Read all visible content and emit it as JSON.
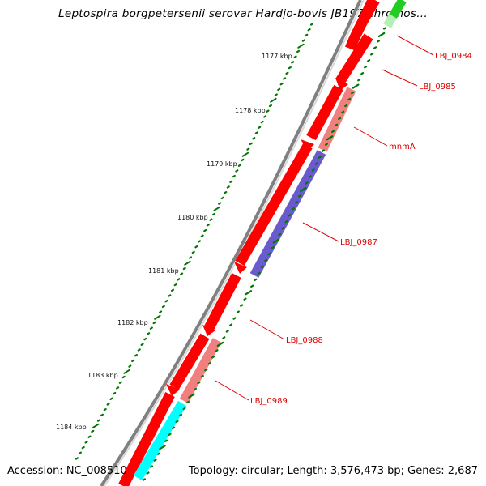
{
  "title": "Leptospira borgpetersenii serovar Hardjo-bovis JB197 chromos...",
  "footer": {
    "accession": "Accession: NC_008510",
    "stats": "Topology: circular; Length: 3,576,473 bp; Genes: 2,687"
  },
  "ticks": [
    "1177 kbp",
    "1178 kbp",
    "1179 kbp",
    "1180 kbp",
    "1181 kbp",
    "1182 kbp",
    "1183 kbp",
    "1184 kbp"
  ],
  "gene_labels": [
    "LBJ_0984",
    "LBJ_0985",
    "mnmA",
    "LBJ_0987",
    "LBJ_0988",
    "LBJ_0989"
  ],
  "colors": {
    "backbone": "#808080",
    "forward_gene": "#ff0000",
    "reverse_gene": "#ff0000",
    "cog_pink": "#f08080",
    "cog_purple": "#6a5acd",
    "cog_cyan": "#00ffff",
    "cog_green": "#22cc22",
    "tick": "#007700",
    "label": "#e00000"
  }
}
